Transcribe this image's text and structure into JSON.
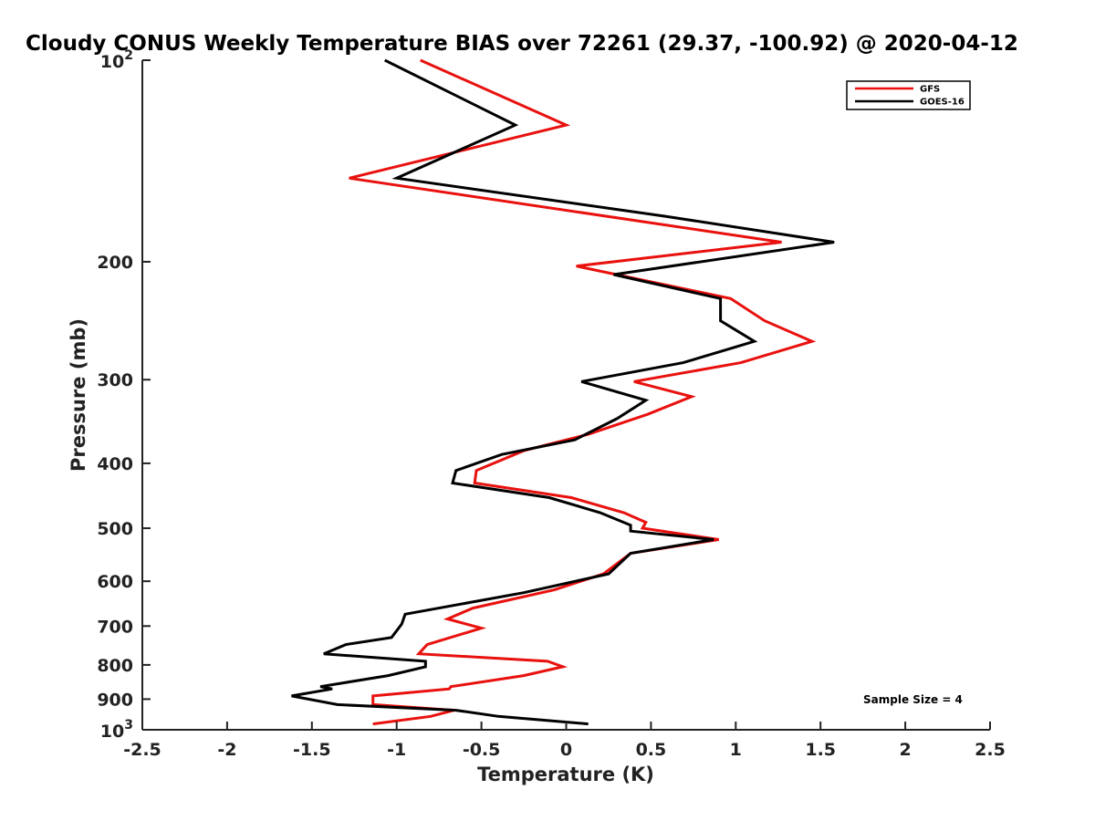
{
  "chart_data": {
    "type": "line",
    "title": "Cloudy CONUS Weekly Temperature BIAS over 72261 (29.37, -100.92) @ 2020-04-12",
    "xlabel": "Temperature (K)",
    "ylabel": "Pressure (mb)",
    "xlim": [
      -2.5,
      2.5
    ],
    "ylim": [
      100,
      1000
    ],
    "y_scale": "log",
    "y_reversed": true,
    "grid": false,
    "legend_position": "top-right",
    "x_ticks": [
      "-2.5",
      "-2",
      "-1.5",
      "-1",
      "-0.5",
      "0",
      "0.5",
      "1",
      "1.5",
      "2",
      "2.5"
    ],
    "y_ticks": [
      {
        "value": 100,
        "base": "10",
        "exp": "2"
      },
      {
        "value": 200,
        "label": "200"
      },
      {
        "value": 300,
        "label": "300"
      },
      {
        "value": 400,
        "label": "400"
      },
      {
        "value": 500,
        "label": "500"
      },
      {
        "value": 600,
        "label": "600"
      },
      {
        "value": 700,
        "label": "700"
      },
      {
        "value": 800,
        "label": "800"
      },
      {
        "value": 900,
        "label": "900"
      },
      {
        "value": 1000,
        "base": "10",
        "exp": "3"
      }
    ],
    "series": [
      {
        "name": "GFS",
        "color": "#e8110e",
        "points": [
          [
            -0.86,
            100
          ],
          [
            0.0,
            125
          ],
          [
            -1.28,
            150
          ],
          [
            1.27,
            187
          ],
          [
            0.06,
            203
          ],
          [
            0.97,
            227
          ],
          [
            1.17,
            245
          ],
          [
            1.45,
            263
          ],
          [
            1.03,
            283
          ],
          [
            0.4,
            302
          ],
          [
            0.74,
            318
          ],
          [
            0.48,
            338
          ],
          [
            0.13,
            362
          ],
          [
            -0.25,
            383
          ],
          [
            -0.53,
            410
          ],
          [
            -0.54,
            428
          ],
          [
            0.03,
            450
          ],
          [
            0.34,
            474
          ],
          [
            0.47,
            490
          ],
          [
            0.45,
            500
          ],
          [
            0.9,
            520
          ],
          [
            0.38,
            545
          ],
          [
            0.22,
            585
          ],
          [
            -0.07,
            618
          ],
          [
            -0.55,
            658
          ],
          [
            -0.7,
            683
          ],
          [
            -0.5,
            705
          ],
          [
            -0.82,
            746
          ],
          [
            -0.87,
            770
          ],
          [
            -0.11,
            790
          ],
          [
            -0.02,
            805
          ],
          [
            -0.25,
            830
          ],
          [
            -0.68,
            862
          ],
          [
            -0.69,
            869
          ],
          [
            -1.14,
            890
          ],
          [
            -1.14,
            917
          ],
          [
            -0.66,
            935
          ],
          [
            -0.8,
            955
          ],
          [
            -1.14,
            980
          ]
        ]
      },
      {
        "name": "GOES-16",
        "color": "#000000",
        "points": [
          [
            -1.07,
            100
          ],
          [
            -0.3,
            125
          ],
          [
            -1.0,
            150
          ],
          [
            0.58,
            171
          ],
          [
            1.58,
            187
          ],
          [
            0.28,
            209
          ],
          [
            0.91,
            227
          ],
          [
            0.91,
            245
          ],
          [
            1.11,
            263
          ],
          [
            0.69,
            283
          ],
          [
            0.09,
            302
          ],
          [
            0.47,
            322
          ],
          [
            0.3,
            343
          ],
          [
            0.05,
            369
          ],
          [
            -0.38,
            388
          ],
          [
            -0.65,
            410
          ],
          [
            -0.67,
            428
          ],
          [
            -0.1,
            450
          ],
          [
            0.2,
            474
          ],
          [
            0.38,
            495
          ],
          [
            0.38,
            505
          ],
          [
            0.87,
            520
          ],
          [
            0.38,
            545
          ],
          [
            0.25,
            585
          ],
          [
            -0.25,
            624
          ],
          [
            -0.95,
            672
          ],
          [
            -0.97,
            695
          ],
          [
            -1.03,
            728
          ],
          [
            -1.3,
            746
          ],
          [
            -1.43,
            770
          ],
          [
            -0.83,
            790
          ],
          [
            -0.83,
            805
          ],
          [
            -1.05,
            830
          ],
          [
            -1.45,
            862
          ],
          [
            -1.38,
            869
          ],
          [
            -1.62,
            890
          ],
          [
            -1.35,
            917
          ],
          [
            -0.65,
            935
          ],
          [
            -0.4,
            955
          ],
          [
            0.13,
            980
          ]
        ]
      }
    ],
    "annotations": [
      "Sample Size = 4"
    ]
  }
}
